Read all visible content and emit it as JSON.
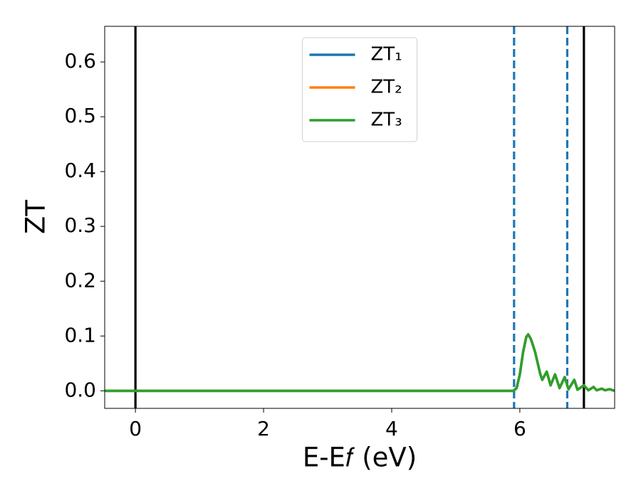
{
  "chart_data": {
    "type": "line",
    "xlabel": "E-E𝑓 (eV)",
    "ylabel": "ZT",
    "x": [
      -0.48,
      5.9,
      5.95,
      6.0,
      6.05,
      6.1,
      6.13,
      6.17,
      6.2,
      6.24,
      6.28,
      6.32,
      6.35,
      6.42,
      6.48,
      6.55,
      6.62,
      6.7,
      6.76,
      6.85,
      6.9,
      7.0,
      7.07,
      7.15,
      7.2,
      7.28,
      7.33,
      7.4,
      7.48
    ],
    "series": [
      {
        "name": "ZT₁",
        "color": "#1f77b4",
        "values": [
          0,
          0,
          0.005,
          0.03,
          0.07,
          0.098,
          0.103,
          0.095,
          0.085,
          0.07,
          0.05,
          0.03,
          0.02,
          0.035,
          0.01,
          0.03,
          0.005,
          0.025,
          0.003,
          0.02,
          0.002,
          0.01,
          0.001,
          0.007,
          0.001,
          0.004,
          0.001,
          0.003,
          0
        ]
      },
      {
        "name": "ZT₂",
        "color": "#ff7f0e",
        "values": [
          0,
          0,
          0.005,
          0.03,
          0.07,
          0.098,
          0.103,
          0.095,
          0.085,
          0.07,
          0.05,
          0.03,
          0.02,
          0.035,
          0.01,
          0.03,
          0.005,
          0.025,
          0.003,
          0.02,
          0.002,
          0.01,
          0.001,
          0.007,
          0.001,
          0.004,
          0.001,
          0.003,
          0
        ]
      },
      {
        "name": "ZT₃",
        "color": "#2ca02c",
        "values": [
          0,
          0,
          0.005,
          0.03,
          0.07,
          0.098,
          0.103,
          0.095,
          0.085,
          0.07,
          0.05,
          0.03,
          0.02,
          0.035,
          0.01,
          0.03,
          0.005,
          0.025,
          0.003,
          0.02,
          0.002,
          0.01,
          0.001,
          0.007,
          0.001,
          0.004,
          0.001,
          0.003,
          0
        ]
      }
    ],
    "vlines": [
      {
        "x": 0,
        "color": "#000000",
        "style": "solid"
      },
      {
        "x": 7.0,
        "color": "#000000",
        "style": "solid"
      },
      {
        "x": 5.91,
        "color": "#1f77b4",
        "style": "dashed"
      },
      {
        "x": 6.74,
        "color": "#1f77b4",
        "style": "dashed"
      }
    ],
    "xlim": [
      -0.48,
      7.48
    ],
    "xticks": [
      0,
      2,
      4,
      6
    ],
    "ylim": [
      -0.032,
      0.665
    ],
    "yticks": [
      {
        "value": 0,
        "label": "0.0"
      },
      0.1,
      0.2,
      0.3,
      0.4,
      0.5,
      0.6
    ],
    "grid": false,
    "legend": "upper center"
  }
}
